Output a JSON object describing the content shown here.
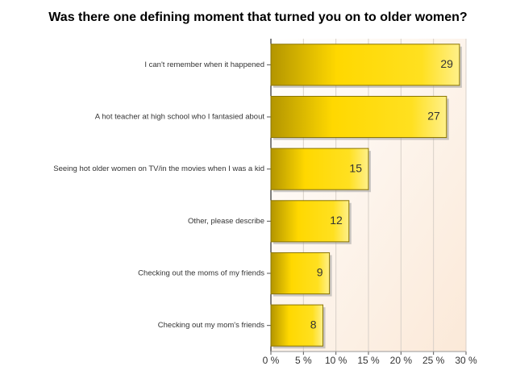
{
  "chart_data": {
    "type": "bar",
    "orientation": "horizontal",
    "title": "Was there one defining moment that turned you on to older women?",
    "categories": [
      "I can't remember when it happened",
      "A hot teacher at high school who I fantasied about",
      "Seeing hot older women on TV/in the movies when I was a kid",
      "Other, please describe",
      "Checking out the moms of my friends",
      "Checking out my mom's friends"
    ],
    "values": [
      29,
      27,
      15,
      12,
      9,
      8
    ],
    "color": "#ffd800",
    "xlim": [
      0,
      30
    ],
    "xticks": [
      {
        "value": 0,
        "label": "0 %"
      },
      {
        "value": 5,
        "label": "5 %"
      },
      {
        "value": 10,
        "label": "10 %"
      },
      {
        "value": 15,
        "label": "15 %"
      },
      {
        "value": 20,
        "label": "20 %"
      },
      {
        "value": 25,
        "label": "25 %"
      },
      {
        "value": 30,
        "label": "30 %"
      }
    ],
    "grid": true
  }
}
